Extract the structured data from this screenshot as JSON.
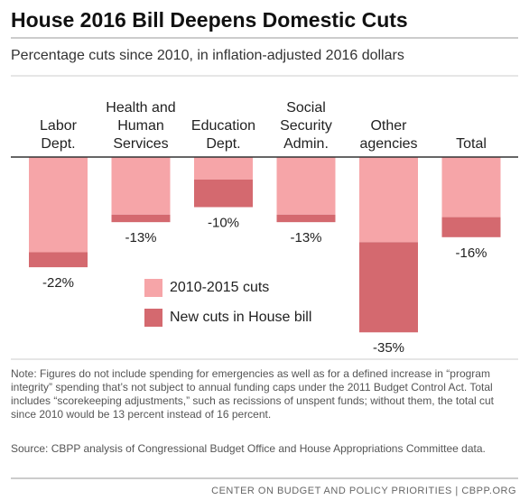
{
  "chart_data": {
    "type": "stacked_bar",
    "title": "House 2016 Bill Deepens Domestic Cuts",
    "subtitle": "Percentage cuts since 2010, in inflation-adjusted 2016 dollars",
    "categories": [
      [
        "Labor",
        "Dept."
      ],
      [
        "Health and",
        "Human",
        "Services"
      ],
      [
        "Education",
        "Dept."
      ],
      [
        "Social",
        "Security",
        "Admin."
      ],
      [
        "Other",
        "agencies"
      ],
      [
        "Total"
      ]
    ],
    "series": [
      {
        "name": "2010-2015 cuts",
        "color": "#f6a5a8",
        "values": [
          -19,
          -11.5,
          -4.5,
          -11.5,
          -17,
          -12
        ]
      },
      {
        "name": "New cuts in House bill",
        "color": "#d4696f",
        "values": [
          -3,
          -1.5,
          -5.5,
          -1.5,
          -18,
          -4
        ]
      }
    ],
    "total_labels": [
      "-22%",
      "-13%",
      "-10%",
      "-13%",
      "-35%",
      "-16%"
    ],
    "ylim": [
      -40,
      0
    ],
    "note": "Note: Figures do not include spending for emergencies as well as for a defined increase in “program integrity” spending that’s not subject to annual funding caps under the 2011 Budget Control Act.  Total includes “scorekeeping adjustments,” such as recissions of unspent funds; without them, the total cut since 2010 would be 13 percent instead of 16 percent.",
    "source": "Source: CBPP analysis of Congressional Budget Office and House Appropriations Committee data.",
    "footer": "CENTER ON BUDGET AND POLICY PRIORITIES | CBPP.ORG"
  }
}
